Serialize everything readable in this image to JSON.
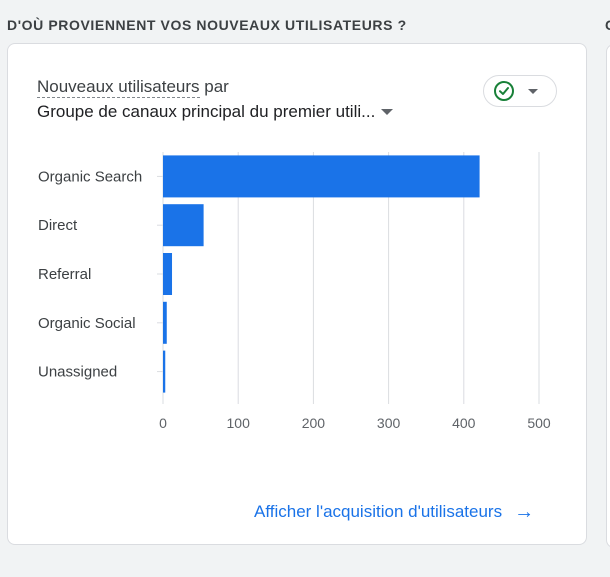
{
  "section": {
    "title": "D'OÙ PROVIENNENT VOS NOUVEAUX UTILISATEURS ?",
    "next_title_fragment": "C"
  },
  "card": {
    "metric_label": "Nouveaux utilisateurs",
    "metric_suffix": "par",
    "dimension_label": "Groupe de canaux principal du premier utili...",
    "status_icon": "check-circle-icon",
    "status_color": "#188038",
    "cta_label": "Afficher l'acquisition d'utilisateurs",
    "cta_icon": "arrow-right-icon"
  },
  "chart_data": {
    "type": "bar",
    "orientation": "horizontal",
    "categories": [
      "Organic Search",
      "Direct",
      "Referral",
      "Organic Social",
      "Unassigned"
    ],
    "values": [
      421,
      54,
      12,
      5,
      3
    ],
    "xlim": [
      0,
      500
    ],
    "xticks": [
      "0",
      "100",
      "200",
      "300",
      "400",
      "500"
    ],
    "bar_color": "#1a73e8",
    "grid": true
  }
}
